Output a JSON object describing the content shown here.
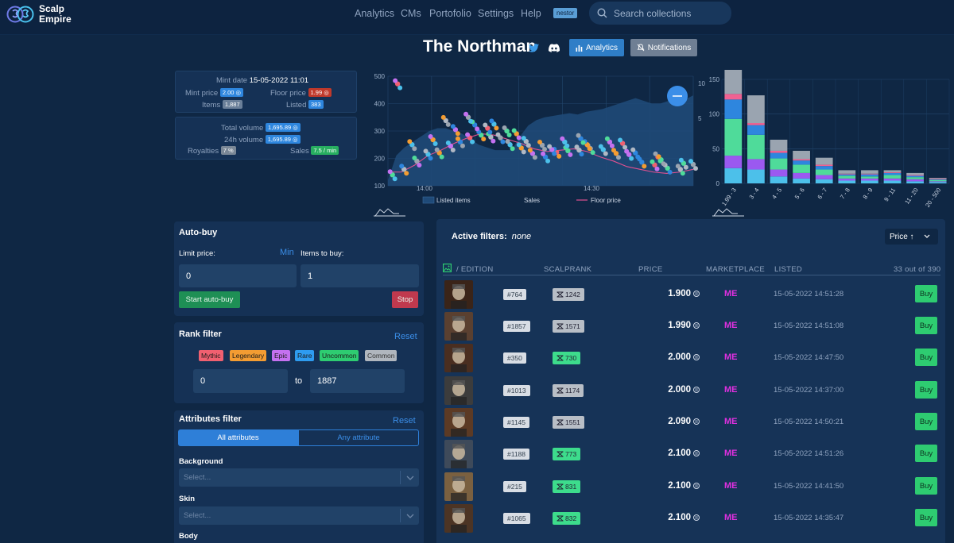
{
  "brand": {
    "line1": "Scalp",
    "line2": "Empire"
  },
  "nav": {
    "items": [
      "Analytics",
      "CMs",
      "Portofolio",
      "Settings",
      "Help"
    ],
    "user": "nestor"
  },
  "search": {
    "placeholder": "Search collections"
  },
  "collection": {
    "title": "The Northman",
    "analytics_label": "Analytics",
    "notifications_label": "Notifications"
  },
  "stats": {
    "mint_date_label": "Mint date",
    "mint_date": "15-05-2022 11:01",
    "mint_price_label": "Mint price",
    "mint_price": "2.00",
    "floor_price_label": "Floor price",
    "floor_price": "1.99",
    "items_label": "Items",
    "items": "1,887",
    "listed_label": "Listed",
    "listed": "383",
    "total_volume_label": "Total volume",
    "total_volume": "1,695.89",
    "volume_24h_label": "24h volume",
    "volume_24h": "1,695.89",
    "royalties_label": "Royalties",
    "royalties": "7 %",
    "sales_label": "Sales",
    "sales": "7.5 / min"
  },
  "chart_data": [
    {
      "type": "line",
      "x_ticks": [
        "14:00",
        "14:30"
      ],
      "y_left_ticks": [
        100,
        200,
        300,
        400,
        500
      ],
      "y_right_ticks": [
        10,
        5
      ],
      "legend": [
        "Listed items",
        "Sales",
        "Floor price"
      ],
      "listed_items": [
        120,
        210,
        240,
        260,
        280,
        300,
        310,
        310,
        300,
        290,
        270,
        250,
        240,
        230,
        230,
        230,
        280,
        320,
        340,
        350,
        355,
        360,
        365,
        360,
        370,
        375,
        380,
        390,
        400,
        410,
        420,
        410,
        400,
        400,
        410,
        420,
        415,
        430
      ],
      "sales": [
        {
          "x": 0.28,
          "y": 140
        },
        {
          "x": 1.0,
          "y": 160
        },
        {
          "x": 1.8,
          "y": 190
        },
        {
          "x": 2.5,
          "y": 215
        },
        {
          "x": 3.2,
          "y": 220
        },
        {
          "x": 3.9,
          "y": 245
        },
        {
          "x": 4.5,
          "y": 260
        },
        {
          "x": 5.1,
          "y": 275
        },
        {
          "x": 5.8,
          "y": 285
        },
        {
          "x": 6.4,
          "y": 278
        },
        {
          "x": 7.0,
          "y": 275
        },
        {
          "x": 7.6,
          "y": 250
        },
        {
          "x": 8.3,
          "y": 238
        },
        {
          "x": 9.0,
          "y": 218
        },
        {
          "x": 9.8,
          "y": 205
        },
        {
          "x": 10.5,
          "y": 222
        },
        {
          "x": 11.2,
          "y": 228
        },
        {
          "x": 11.9,
          "y": 230
        },
        {
          "x": 12.6,
          "y": 236
        },
        {
          "x": 13.4,
          "y": 232
        },
        {
          "x": 14.2,
          "y": 218
        },
        {
          "x": 15.0,
          "y": 214
        },
        {
          "x": 15.8,
          "y": 186
        },
        {
          "x": 16.6,
          "y": 176
        },
        {
          "x": 17.4,
          "y": 164
        },
        {
          "x": 18.2,
          "y": 160
        },
        {
          "x": 19.0,
          "y": 178
        },
        {
          "x": 1.5,
          "y": 250
        },
        {
          "x": 2.8,
          "y": 268
        },
        {
          "x": 4.2,
          "y": 305
        },
        {
          "x": 5.4,
          "y": 322
        },
        {
          "x": 6.2,
          "y": 310
        },
        {
          "x": 7.4,
          "y": 300
        },
        {
          "x": 8.6,
          "y": 262
        },
        {
          "x": 9.6,
          "y": 248
        },
        {
          "x": 11.0,
          "y": 260
        },
        {
          "x": 12.4,
          "y": 250
        },
        {
          "x": 13.8,
          "y": 260
        },
        {
          "x": 15.4,
          "y": 220
        },
        {
          "x": 16.8,
          "y": 205
        },
        {
          "x": 18.4,
          "y": 182
        },
        {
          "x": 3.6,
          "y": 338
        },
        {
          "x": 5.0,
          "y": 350
        },
        {
          "x": 6.6,
          "y": 325
        },
        {
          "x": 8.0,
          "y": 290
        },
        {
          "x": 10.2,
          "y": 232
        },
        {
          "x": 12.0,
          "y": 272
        },
        {
          "x": 14.6,
          "y": 255
        },
        {
          "x": 17.0,
          "y": 195
        },
        {
          "x": 0.6,
          "y": 472
        }
      ],
      "floor_price": [
        150,
        150,
        175,
        210,
        230,
        255,
        275,
        290,
        285,
        270,
        255,
        235,
        225,
        230,
        235,
        225,
        205,
        190,
        170,
        160,
        150,
        145,
        150,
        160
      ]
    },
    {
      "type": "bar",
      "categories": [
        "1.99 - 3",
        "3 - 4",
        "4 - 5",
        "5 - 6",
        "6 - 7",
        "7 - 8",
        "8 - 9",
        "9 - 11",
        "11 - 20",
        "20 - 500"
      ],
      "y_ticks": [
        0,
        50,
        100,
        150
      ],
      "series": [
        {
          "color": "#4cc0ea",
          "values": [
            22,
            20,
            10,
            7,
            6,
            4,
            4,
            4,
            3,
            2
          ]
        },
        {
          "color": "#9b59f0",
          "values": [
            18,
            15,
            10,
            8,
            6,
            3,
            3,
            3,
            3,
            1
          ]
        },
        {
          "color": "#4fdb9a",
          "values": [
            53,
            35,
            16,
            12,
            8,
            4,
            3,
            5,
            3,
            2
          ]
        },
        {
          "color": "#2e86de",
          "values": [
            28,
            14,
            8,
            6,
            5,
            2,
            3,
            3,
            2,
            1
          ]
        },
        {
          "color": "#f06292",
          "values": [
            8,
            3,
            3,
            2,
            2,
            1,
            1,
            1,
            1,
            1
          ]
        },
        {
          "color": "#9aa4b0",
          "values": [
            47,
            40,
            16,
            12,
            10,
            5,
            5,
            3,
            3,
            1
          ]
        }
      ]
    }
  ],
  "autobuy": {
    "title": "Auto-buy",
    "limit_label": "Limit price:",
    "min_label": "Min",
    "items_label": "Items to buy:",
    "limit_value": "0",
    "items_value": "1",
    "start_label": "Start auto-buy",
    "stop_label": "Stop"
  },
  "rank_filter": {
    "title": "Rank filter",
    "reset_label": "Reset",
    "tags": [
      {
        "label": "Mythic",
        "color": "#f06070"
      },
      {
        "label": "Legendary",
        "color": "#f39c32"
      },
      {
        "label": "Epic",
        "color": "#c471f0"
      },
      {
        "label": "Rare",
        "color": "#2e9cf0"
      },
      {
        "label": "Uncommon",
        "color": "#2ecc71"
      },
      {
        "label": "Common",
        "color": "#b0b6be"
      }
    ],
    "from_value": "0",
    "to_label": "to",
    "to_value": "1887"
  },
  "attributes_filter": {
    "title": "Attributes filter",
    "reset_label": "Reset",
    "all_label": "All attributes",
    "any_label": "Any attribute",
    "groups": [
      {
        "label": "Background",
        "placeholder": "Select..."
      },
      {
        "label": "Skin",
        "placeholder": "Select..."
      },
      {
        "label": "Body",
        "placeholder": ""
      }
    ]
  },
  "listings": {
    "active_filters_label": "Active filters:",
    "active_filters_value": "none",
    "sort_label": "Price ↑",
    "headers": {
      "edition": "/ EDITION",
      "rank": "SCALPRANK",
      "price": "PRICE",
      "market": "MARKETPLACE",
      "listed": "LISTED",
      "count": "33 out of 390"
    },
    "buy_label": "Buy",
    "rows": [
      {
        "edition": "#764",
        "rank": "1242",
        "rank_color": "#b8bec6",
        "price": "1.900",
        "market": "ME",
        "listed": "15-05-2022 14:51:28",
        "thumb": "#3a2418"
      },
      {
        "edition": "#1857",
        "rank": "1571",
        "rank_color": "#b8bec6",
        "price": "1.990",
        "market": "ME",
        "listed": "15-05-2022 14:51:08",
        "thumb": "#5a4030"
      },
      {
        "edition": "#350",
        "rank": "730",
        "rank_color": "#3ddc8c",
        "price": "2.000",
        "market": "ME",
        "listed": "15-05-2022 14:47:50",
        "thumb": "#4a2e20"
      },
      {
        "edition": "#1013",
        "rank": "1174",
        "rank_color": "#b8bec6",
        "price": "2.000",
        "market": "ME",
        "listed": "15-05-2022 14:37:00",
        "thumb": "#3c3c3c"
      },
      {
        "edition": "#1145",
        "rank": "1551",
        "rank_color": "#b8bec6",
        "price": "2.090",
        "market": "ME",
        "listed": "15-05-2022 14:50:21",
        "thumb": "#5c3a24"
      },
      {
        "edition": "#1188",
        "rank": "773",
        "rank_color": "#3ddc8c",
        "price": "2.100",
        "market": "ME",
        "listed": "15-05-2022 14:51:26",
        "thumb": "#3e4a5a"
      },
      {
        "edition": "#215",
        "rank": "831",
        "rank_color": "#3ddc8c",
        "price": "2.100",
        "market": "ME",
        "listed": "15-05-2022 14:41:50",
        "thumb": "#7a6040"
      },
      {
        "edition": "#1065",
        "rank": "832",
        "rank_color": "#3ddc8c",
        "price": "2.100",
        "market": "ME",
        "listed": "15-05-2022 14:35:47",
        "thumb": "#4c3424"
      }
    ]
  }
}
